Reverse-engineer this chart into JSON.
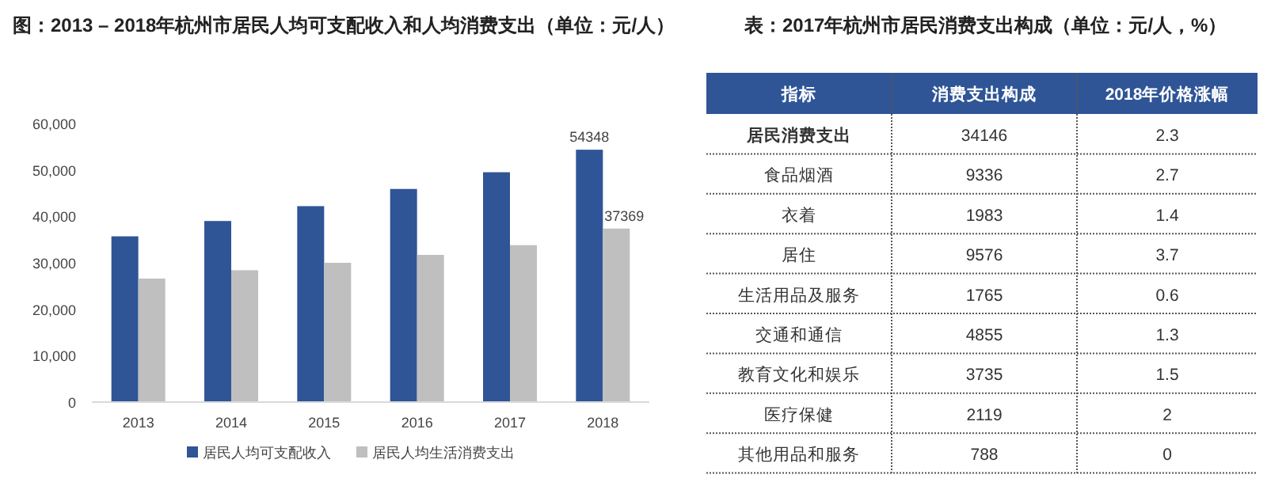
{
  "chart_data": [
    {
      "type": "bar",
      "title": "图：2013 – 2018年杭州市居民人均可支配收入和人均消费支出（单位：元/人）",
      "categories": [
        "2013",
        "2014",
        "2015",
        "2016",
        "2017",
        "2018"
      ],
      "series": [
        {
          "name": "居民人均可支配收入",
          "color": "#2f5597",
          "values": [
            35700,
            39000,
            42200,
            45900,
            49500,
            54348
          ],
          "value_labels": [
            null,
            null,
            null,
            null,
            null,
            "54348"
          ]
        },
        {
          "name": "居民人均生活消费支出",
          "color": "#bfbfbf",
          "values": [
            26600,
            28400,
            30000,
            31700,
            33800,
            37369
          ],
          "value_labels": [
            null,
            null,
            null,
            null,
            null,
            "37369"
          ]
        }
      ],
      "ylim": [
        0,
        60000
      ],
      "yticks": [
        {
          "value": 0,
          "label": "0"
        },
        {
          "value": 10000,
          "label": "10,000"
        },
        {
          "value": 20000,
          "label": "20,000"
        },
        {
          "value": 30000,
          "label": "30,000"
        },
        {
          "value": 40000,
          "label": "40,000"
        },
        {
          "value": 50000,
          "label": "50,000"
        },
        {
          "value": 60000,
          "label": "60,000"
        }
      ],
      "grid": false,
      "legend": "bottom"
    },
    {
      "type": "other",
      "title": "表：2017年杭州市居民消费支出构成（单位：元/人，%）",
      "categories": [
        "指标",
        "消费支出构成",
        "2018年价格涨幅"
      ],
      "cell_labels": [
        [
          "居民消费支出",
          "34146",
          "2.3"
        ],
        [
          "食品烟酒",
          "9336",
          "2.7"
        ],
        [
          "衣着",
          "1983",
          "1.4"
        ],
        [
          "居住",
          "9576",
          "3.7"
        ],
        [
          "生活用品及服务",
          "1765",
          "0.6"
        ],
        [
          "交通和通信",
          "4855",
          "1.3"
        ],
        [
          "教育文化和娱乐",
          "3735",
          "1.5"
        ],
        [
          "医疗保健",
          "2119",
          "2"
        ],
        [
          "其他用品和服务",
          "788",
          "0"
        ]
      ],
      "colors": [
        "#2f5597",
        "#2f5597",
        "#2f5597"
      ]
    }
  ]
}
